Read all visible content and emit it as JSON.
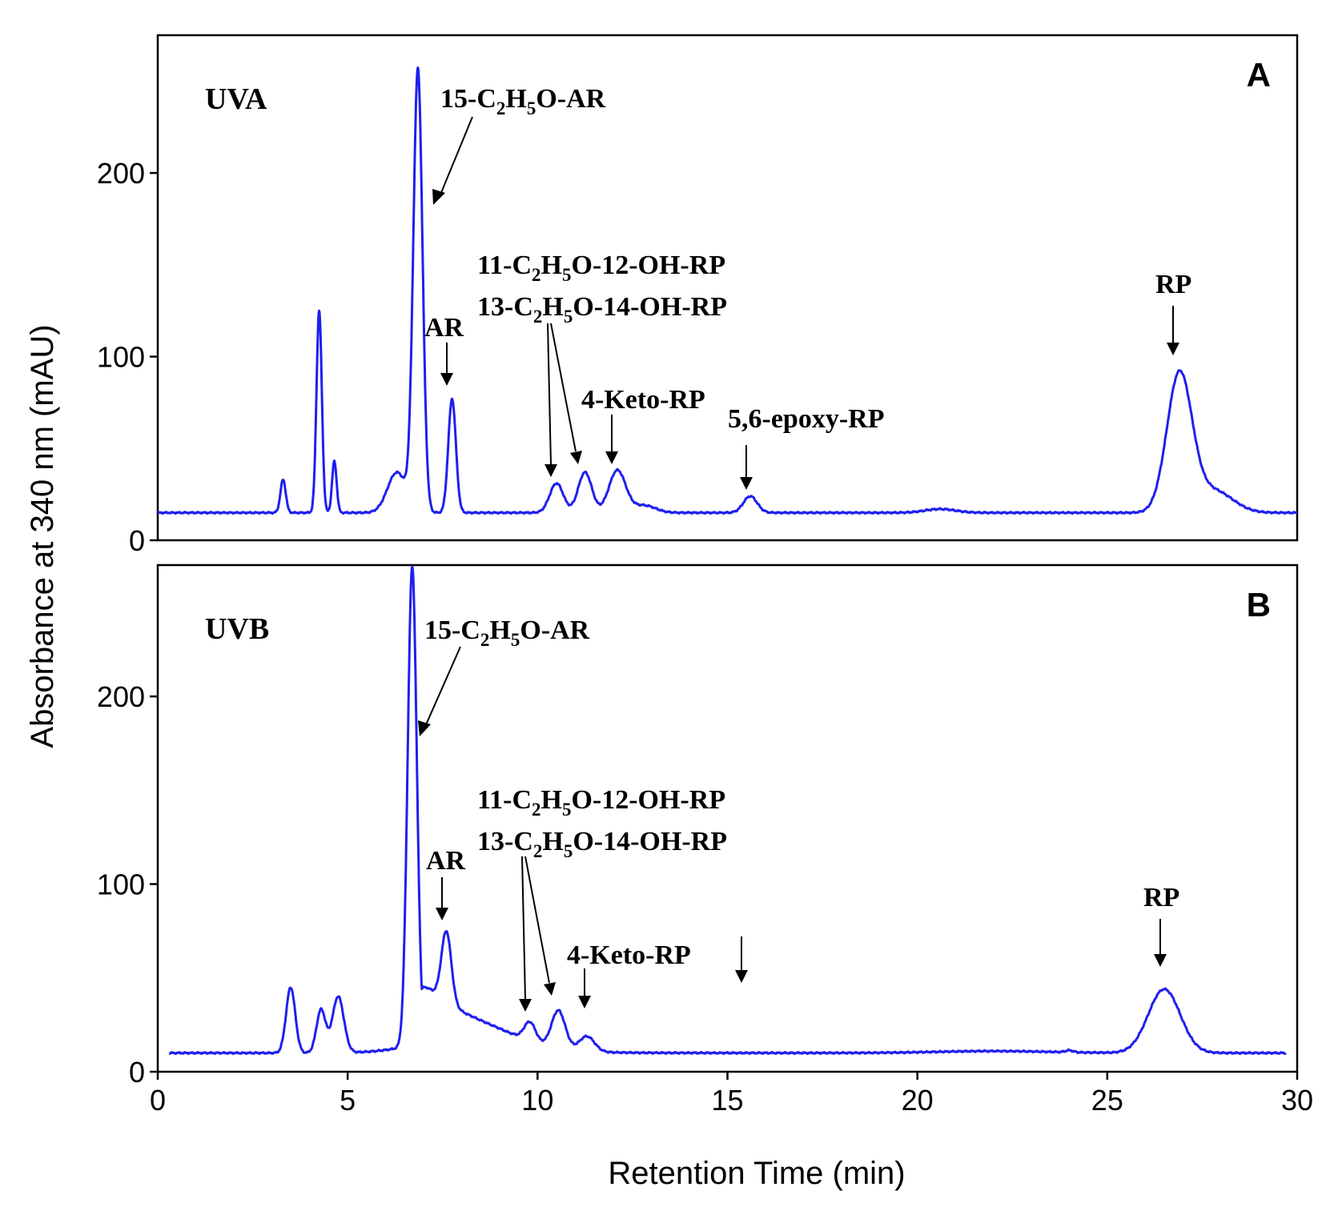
{
  "colors": {
    "trace": "#1f1fef",
    "axis": "#000000"
  },
  "chart_data": {
    "type": "line",
    "xlabel": "Retention Time (min)",
    "ylabel": "Absorbance at 340 nm (mAU)",
    "xlim": [
      0,
      30
    ],
    "x_ticks": [
      0,
      5,
      10,
      15,
      20,
      25,
      30
    ],
    "y_ticks": [
      0,
      100,
      200
    ],
    "grid": false,
    "panels": [
      {
        "letter": "A",
        "condition": "UVA",
        "ylim": [
          0,
          275
        ],
        "baseline": 15,
        "x_start": 0,
        "x_end": 30,
        "peaks": [
          {
            "x": 3.3,
            "y": 18,
            "w": 0.07
          },
          {
            "x": 4.25,
            "y": 110,
            "w": 0.07
          },
          {
            "x": 4.65,
            "y": 28,
            "w": 0.06
          },
          {
            "x": 6.3,
            "y": 22,
            "w": 0.25
          },
          {
            "x": 6.85,
            "y": 240,
            "w": 0.12
          },
          {
            "x": 7.75,
            "y": 62,
            "w": 0.1
          },
          {
            "x": 10.5,
            "y": 16,
            "w": 0.18
          },
          {
            "x": 11.25,
            "y": 22,
            "w": 0.18
          },
          {
            "x": 12.1,
            "y": 23,
            "w": 0.22
          },
          {
            "x": 12.8,
            "y": 4,
            "w": 0.3
          },
          {
            "x": 15.6,
            "y": 9,
            "w": 0.18
          },
          {
            "x": 20.6,
            "y": 2,
            "w": 0.4
          },
          {
            "x": 26.9,
            "y": 75,
            "w": 0.33
          },
          {
            "x": 27.8,
            "y": 12,
            "w": 0.5
          }
        ],
        "annotations": [
          {
            "label": "15-C2H5O-AR",
            "x": 7.4,
            "y": 180
          },
          {
            "label": "AR",
            "x": 7.75,
            "y": 82
          },
          {
            "label": "11-C2H5O-12-OH-RP",
            "x": 0,
            "y": 0
          },
          {
            "label": "13-C2H5O-14-OH-RP",
            "x": 10.5,
            "y": 35
          },
          {
            "label": "4-Keto-RP",
            "x": 12.1,
            "y": 42
          },
          {
            "label": "5,6-epoxy-RP",
            "x": 15.6,
            "y": 28
          },
          {
            "label": "RP",
            "x": 26.9,
            "y": 100
          }
        ]
      },
      {
        "letter": "B",
        "condition": "UVB",
        "ylim": [
          0,
          270
        ],
        "baseline": 10,
        "x_start": 0.3,
        "x_end": 29.7,
        "peaks": [
          {
            "x": 3.5,
            "y": 35,
            "w": 0.12
          },
          {
            "x": 4.3,
            "y": 23,
            "w": 0.12
          },
          {
            "x": 4.75,
            "y": 30,
            "w": 0.15
          },
          {
            "x": 6.7,
            "y": 255,
            "w": 0.12,
            "tail": 1.0
          },
          {
            "x": 7.6,
            "y": 38,
            "w": 0.13
          },
          {
            "x": 8.3,
            "y": 10,
            "w": 1.2
          },
          {
            "x": 9.8,
            "y": 10,
            "w": 0.15
          },
          {
            "x": 10.55,
            "y": 20,
            "w": 0.18
          },
          {
            "x": 11.3,
            "y": 8,
            "w": 0.2
          },
          {
            "x": 22,
            "y": 1,
            "w": 1.5
          },
          {
            "x": 24,
            "y": 1,
            "w": 0.1
          },
          {
            "x": 26.5,
            "y": 34,
            "w": 0.42
          }
        ],
        "annotations": [
          {
            "label": "15-C2H5O-AR",
            "x": 7.1,
            "y": 180
          },
          {
            "label": "AR",
            "x": 7.6,
            "y": 82
          },
          {
            "label": "11-C2H5O-12-OH-RP",
            "x": 0,
            "y": 0
          },
          {
            "label": "13-C2H5O-14-OH-RP",
            "x": 10.55,
            "y": 30
          },
          {
            "label": "4-Keto-RP",
            "x": 11.3,
            "y": 32
          },
          {
            "label": "",
            "x": 15.5,
            "y": 45
          },
          {
            "label": "RP",
            "x": 26.5,
            "y": 58
          }
        ]
      }
    ]
  }
}
